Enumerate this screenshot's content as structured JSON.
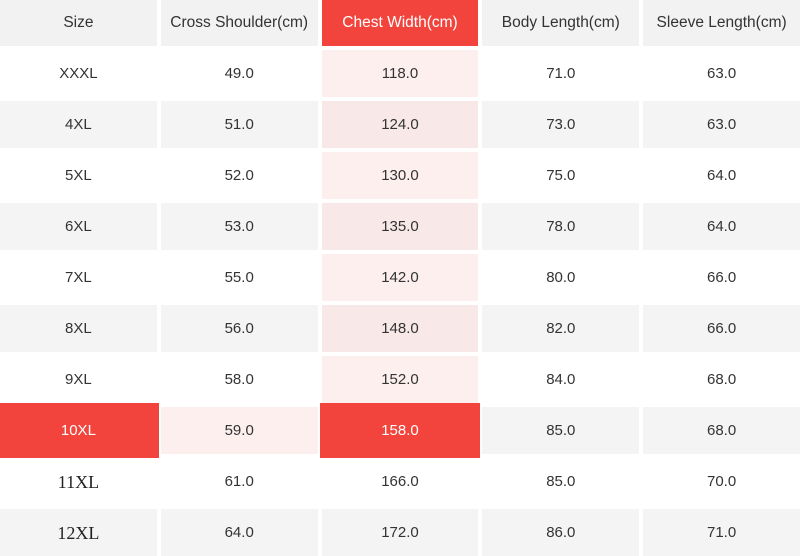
{
  "table": {
    "columns": [
      {
        "label": "Size"
      },
      {
        "label": "Cross Shoulder(cm)"
      },
      {
        "label": "Chest Width(cm)",
        "highlighted": true
      },
      {
        "label": "Body Length(cm)"
      },
      {
        "label": "Sleeve Length(cm)"
      }
    ],
    "highlighted_column": "Chest Width(cm)",
    "selected_row": "10XL",
    "rows": [
      {
        "size": "XXXL",
        "values": [
          "49.0",
          "118.0",
          "71.0",
          "63.0"
        ],
        "cell_bg": [
          "white",
          "white",
          "pink",
          "white",
          "white"
        ]
      },
      {
        "size": "4XL",
        "values": [
          "51.0",
          "124.0",
          "73.0",
          "63.0"
        ],
        "cell_bg": [
          "gray",
          "gray",
          "pinkd",
          "gray",
          "gray"
        ]
      },
      {
        "size": "5XL",
        "values": [
          "52.0",
          "130.0",
          "75.0",
          "64.0"
        ],
        "cell_bg": [
          "white",
          "white",
          "pink",
          "white",
          "white"
        ]
      },
      {
        "size": "6XL",
        "values": [
          "53.0",
          "135.0",
          "78.0",
          "64.0"
        ],
        "cell_bg": [
          "gray",
          "gray",
          "pinkd",
          "gray",
          "gray"
        ]
      },
      {
        "size": "7XL",
        "values": [
          "55.0",
          "142.0",
          "80.0",
          "66.0"
        ],
        "cell_bg": [
          "white",
          "white",
          "pink",
          "white",
          "white"
        ]
      },
      {
        "size": "8XL",
        "values": [
          "56.0",
          "148.0",
          "82.0",
          "66.0"
        ],
        "cell_bg": [
          "gray",
          "gray",
          "pinkd",
          "gray",
          "gray"
        ]
      },
      {
        "size": "9XL",
        "values": [
          "58.0",
          "152.0",
          "84.0",
          "68.0"
        ],
        "cell_bg": [
          "white",
          "white",
          "pink",
          "white",
          "white"
        ]
      },
      {
        "size": "10XL",
        "values": [
          "59.0",
          "158.0",
          "85.0",
          "68.0"
        ],
        "cell_bg": [
          "red",
          "pink",
          "red",
          "gray",
          "gray"
        ],
        "selected": true
      },
      {
        "size": "11XL",
        "values": [
          "61.0",
          "166.0",
          "85.0",
          "70.0"
        ],
        "cell_bg": [
          "white",
          "white",
          "white",
          "white",
          "white"
        ],
        "serif_label": true
      },
      {
        "size": "12XL",
        "values": [
          "64.0",
          "172.0",
          "86.0",
          "71.0"
        ],
        "cell_bg": [
          "gray",
          "gray",
          "gray",
          "gray",
          "gray"
        ],
        "serif_label": true
      }
    ]
  },
  "colors": {
    "accent_red": "#f2443d",
    "header_gray": "#f2f2f2",
    "row_gray": "#f4f4f4",
    "chest_tint_light": "#fcefee",
    "chest_tint_dark": "#f8e9e8",
    "text": "#333333",
    "selected_text": "#ffffff"
  }
}
